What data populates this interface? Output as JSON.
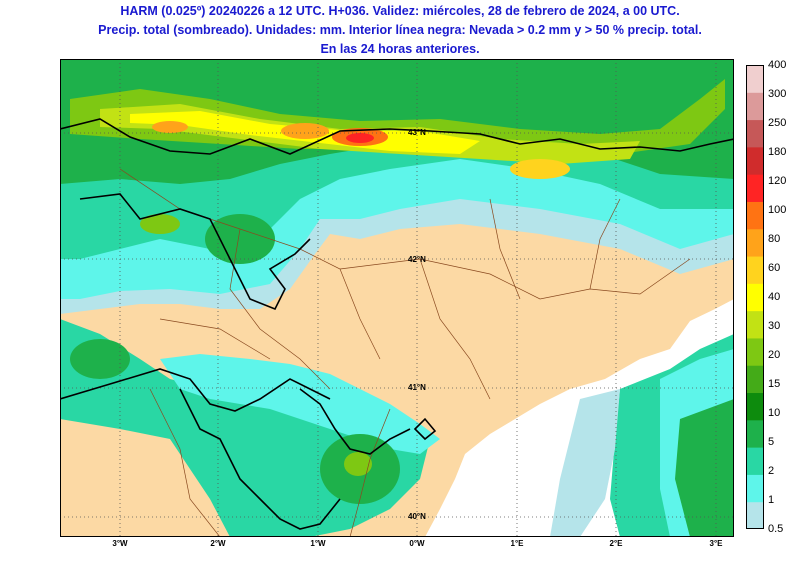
{
  "title": {
    "line1": "HARM (0.025º) 20240226 a 12 UTC. H+036. Validez: miércoles, 28 de febrero de 2024, a 00 UTC.",
    "line2": "Precip. total (sombreado). Unidades: mm. Interior línea negra: Nevada > 0.2 mm y > 50 % precip. total.",
    "line3": "En las 24 horas anteriores."
  },
  "map": {
    "lon_labels": [
      "3°W",
      "2°W",
      "1°W",
      "0°W",
      "1°E",
      "2°E",
      "3°E"
    ],
    "lat_labels": [
      "42°N",
      "41°N",
      "40°N"
    ],
    "top_lat_label": "43°N",
    "colors": {
      "land": "#fcd9a4",
      "sea": "#ffffff",
      "border": "#8a4a20",
      "snow_contour": "#000000"
    }
  },
  "legend": {
    "levels": [
      "0.5",
      "1",
      "2",
      "5",
      "10",
      "15",
      "20",
      "30",
      "40",
      "60",
      "80",
      "100",
      "120",
      "180",
      "250",
      "300",
      "400"
    ],
    "colors": [
      "#b5e4ea",
      "#5ef5ea",
      "#29d7a4",
      "#1eb14b",
      "#0d8b0d",
      "#44ab18",
      "#7ec813",
      "#c2e214",
      "#ffff00",
      "#ffd31e",
      "#ffa31a",
      "#ff7313",
      "#ff2424",
      "#d02c2c",
      "#c65858",
      "#dc9a9a",
      "#f0cfcf"
    ]
  }
}
